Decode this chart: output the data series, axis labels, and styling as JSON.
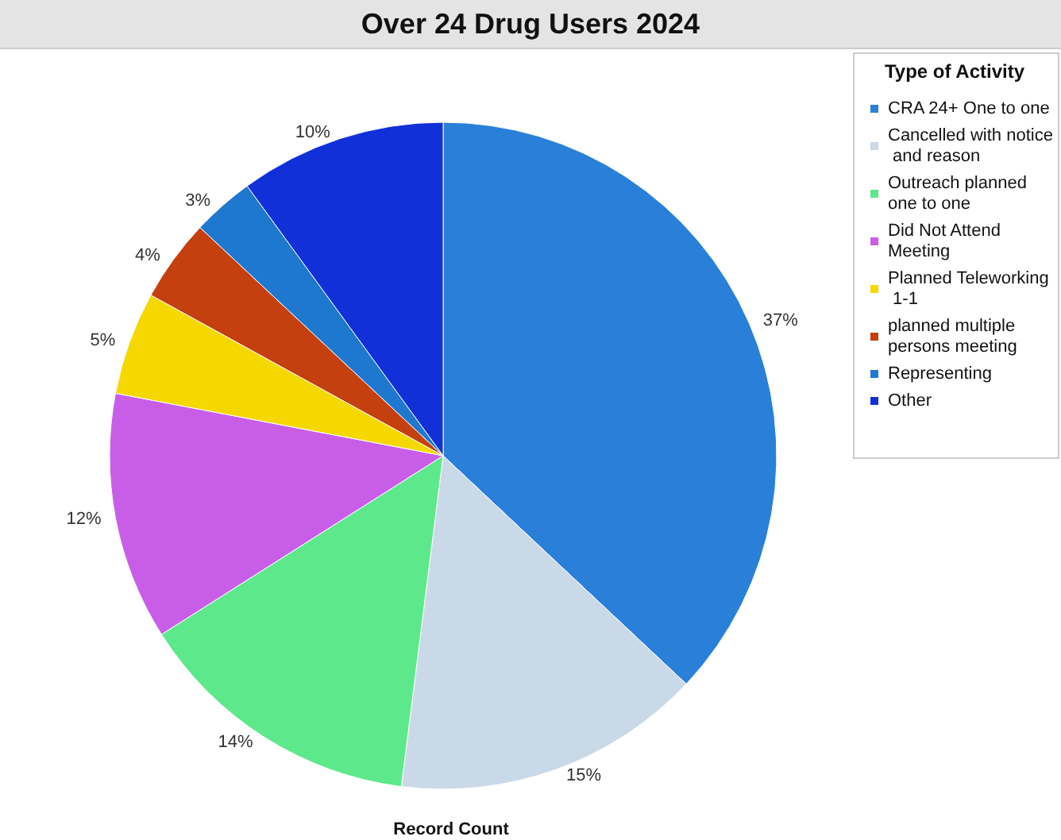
{
  "chart_data": {
    "type": "pie",
    "title": "Over 24 Drug Users 2024",
    "xlabel": "Record Count",
    "legend_title": "Type of Activity",
    "legend": "top right",
    "categories": [
      "CRA 24+ One to one",
      "Cancelled with notice and reason",
      "Outreach planned one to one",
      "Did Not Attend Meeting",
      "Planned Teleworking 1-1",
      "planned multiple persons meeting",
      "Representing",
      "Other"
    ],
    "values": [
      37,
      15,
      14,
      12,
      5,
      4,
      3,
      10
    ],
    "value_labels": [
      "37%",
      "15%",
      "14%",
      "12%",
      "5%",
      "4%",
      "3%",
      "10%"
    ],
    "colors": [
      "#2a7fd8",
      "#c9d9e8",
      "#5ee88c",
      "#c85ee8",
      "#f5d800",
      "#c4400e",
      "#1f78d0",
      "#1230d8"
    ]
  }
}
